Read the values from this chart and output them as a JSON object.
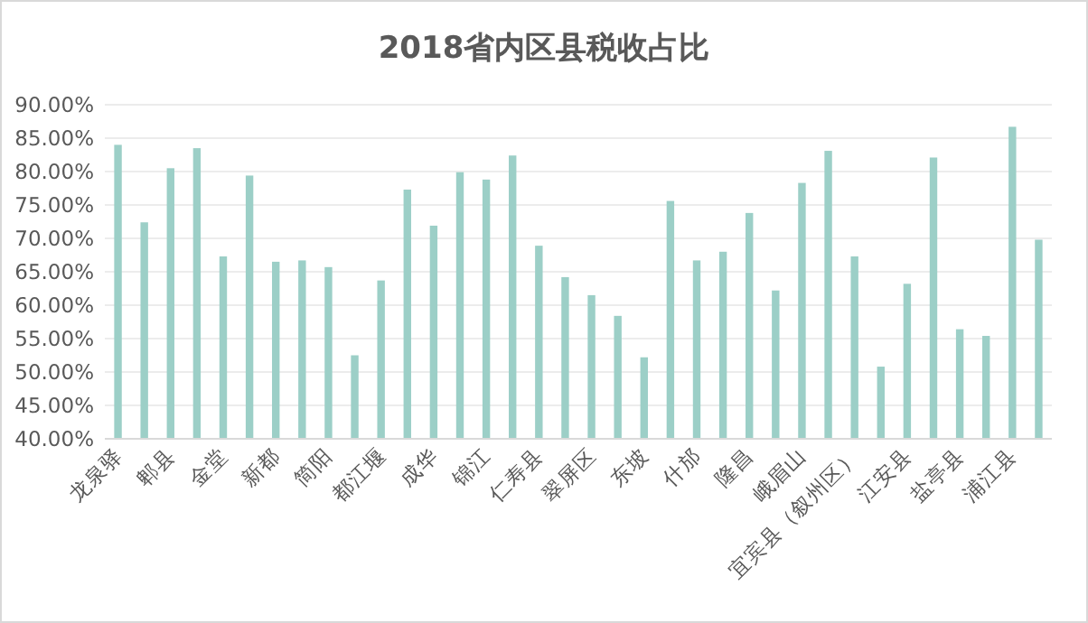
{
  "chart_data": {
    "type": "bar",
    "title": "2018省内区县税收占比",
    "categories": [
      "龙泉驿",
      null,
      "郫县",
      null,
      "金堂",
      null,
      "新都",
      null,
      "简阳",
      null,
      "都江堰",
      null,
      "成华",
      null,
      "锦江",
      null,
      "仁寿县",
      null,
      "翠屏区",
      null,
      "东坡",
      null,
      "什邡",
      null,
      "隆昌",
      null,
      "峨眉山",
      null,
      "宜宾县（叙州区）",
      null,
      "江安县",
      null,
      "盐亭县",
      null,
      "浦江县",
      null
    ],
    "values": [
      84.0,
      72.4,
      80.5,
      83.5,
      67.3,
      79.4,
      66.5,
      66.7,
      65.7,
      52.5,
      63.7,
      77.3,
      71.9,
      79.9,
      78.8,
      82.4,
      68.9,
      64.2,
      61.5,
      58.4,
      52.2,
      75.6,
      66.7,
      68.0,
      73.8,
      62.2,
      78.3,
      83.1,
      67.3,
      50.8,
      63.2,
      82.1,
      56.4,
      55.4,
      86.7,
      69.8
    ],
    "color": "#9ccfc7",
    "ylim": [
      40,
      90
    ],
    "yticks": [
      {
        "value": 40,
        "label": "40.00%"
      },
      {
        "value": 45,
        "label": "45.00%"
      },
      {
        "value": 50,
        "label": "50.00%"
      },
      {
        "value": 55,
        "label": "55.00%"
      },
      {
        "value": 60,
        "label": "60.00%"
      },
      {
        "value": 65,
        "label": "65.00%"
      },
      {
        "value": 70,
        "label": "70.00%"
      },
      {
        "value": 75,
        "label": "75.00%"
      },
      {
        "value": 80,
        "label": "80.00%"
      },
      {
        "value": 85,
        "label": "85.00%"
      },
      {
        "value": 90,
        "label": "90.00%"
      }
    ],
    "grid": "y"
  }
}
